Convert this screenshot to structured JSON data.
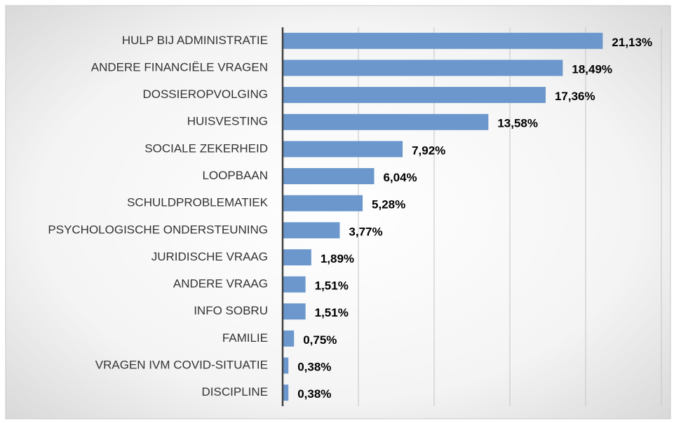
{
  "chart_data": {
    "type": "barh",
    "categories": [
      "HULP BIJ ADMINISTRATIE",
      "ANDERE FINANCIËLE VRAGEN",
      "DOSSIEROPVOLGING",
      "HUISVESTING",
      "SOCIALE ZEKERHEID",
      "LOOPBAAN",
      "SCHULDPROBLEMATIEK",
      "PSYCHOLOGISCHE ONDERSTEUNING",
      "JURIDISCHE VRAAG",
      "ANDERE VRAAG",
      "INFO SOBRU",
      "FAMILIE",
      "VRAGEN IVM COVID-SITUATIE",
      "DISCIPLINE"
    ],
    "values": [
      21.13,
      18.49,
      17.36,
      13.58,
      7.92,
      6.04,
      5.28,
      3.77,
      1.89,
      1.51,
      1.51,
      0.75,
      0.38,
      0.38
    ],
    "value_labels": [
      "21,13%",
      "18,49%",
      "17,36%",
      "13,58%",
      "7,92%",
      "6,04%",
      "5,28%",
      "3,77%",
      "1,89%",
      "1,51%",
      "1,51%",
      "0,75%",
      "0,38%",
      "0,38%"
    ],
    "color": "#6b97cc",
    "xlim": [
      0,
      25
    ],
    "xticks": [
      0,
      5,
      10,
      15,
      20,
      25
    ],
    "grid": true
  }
}
